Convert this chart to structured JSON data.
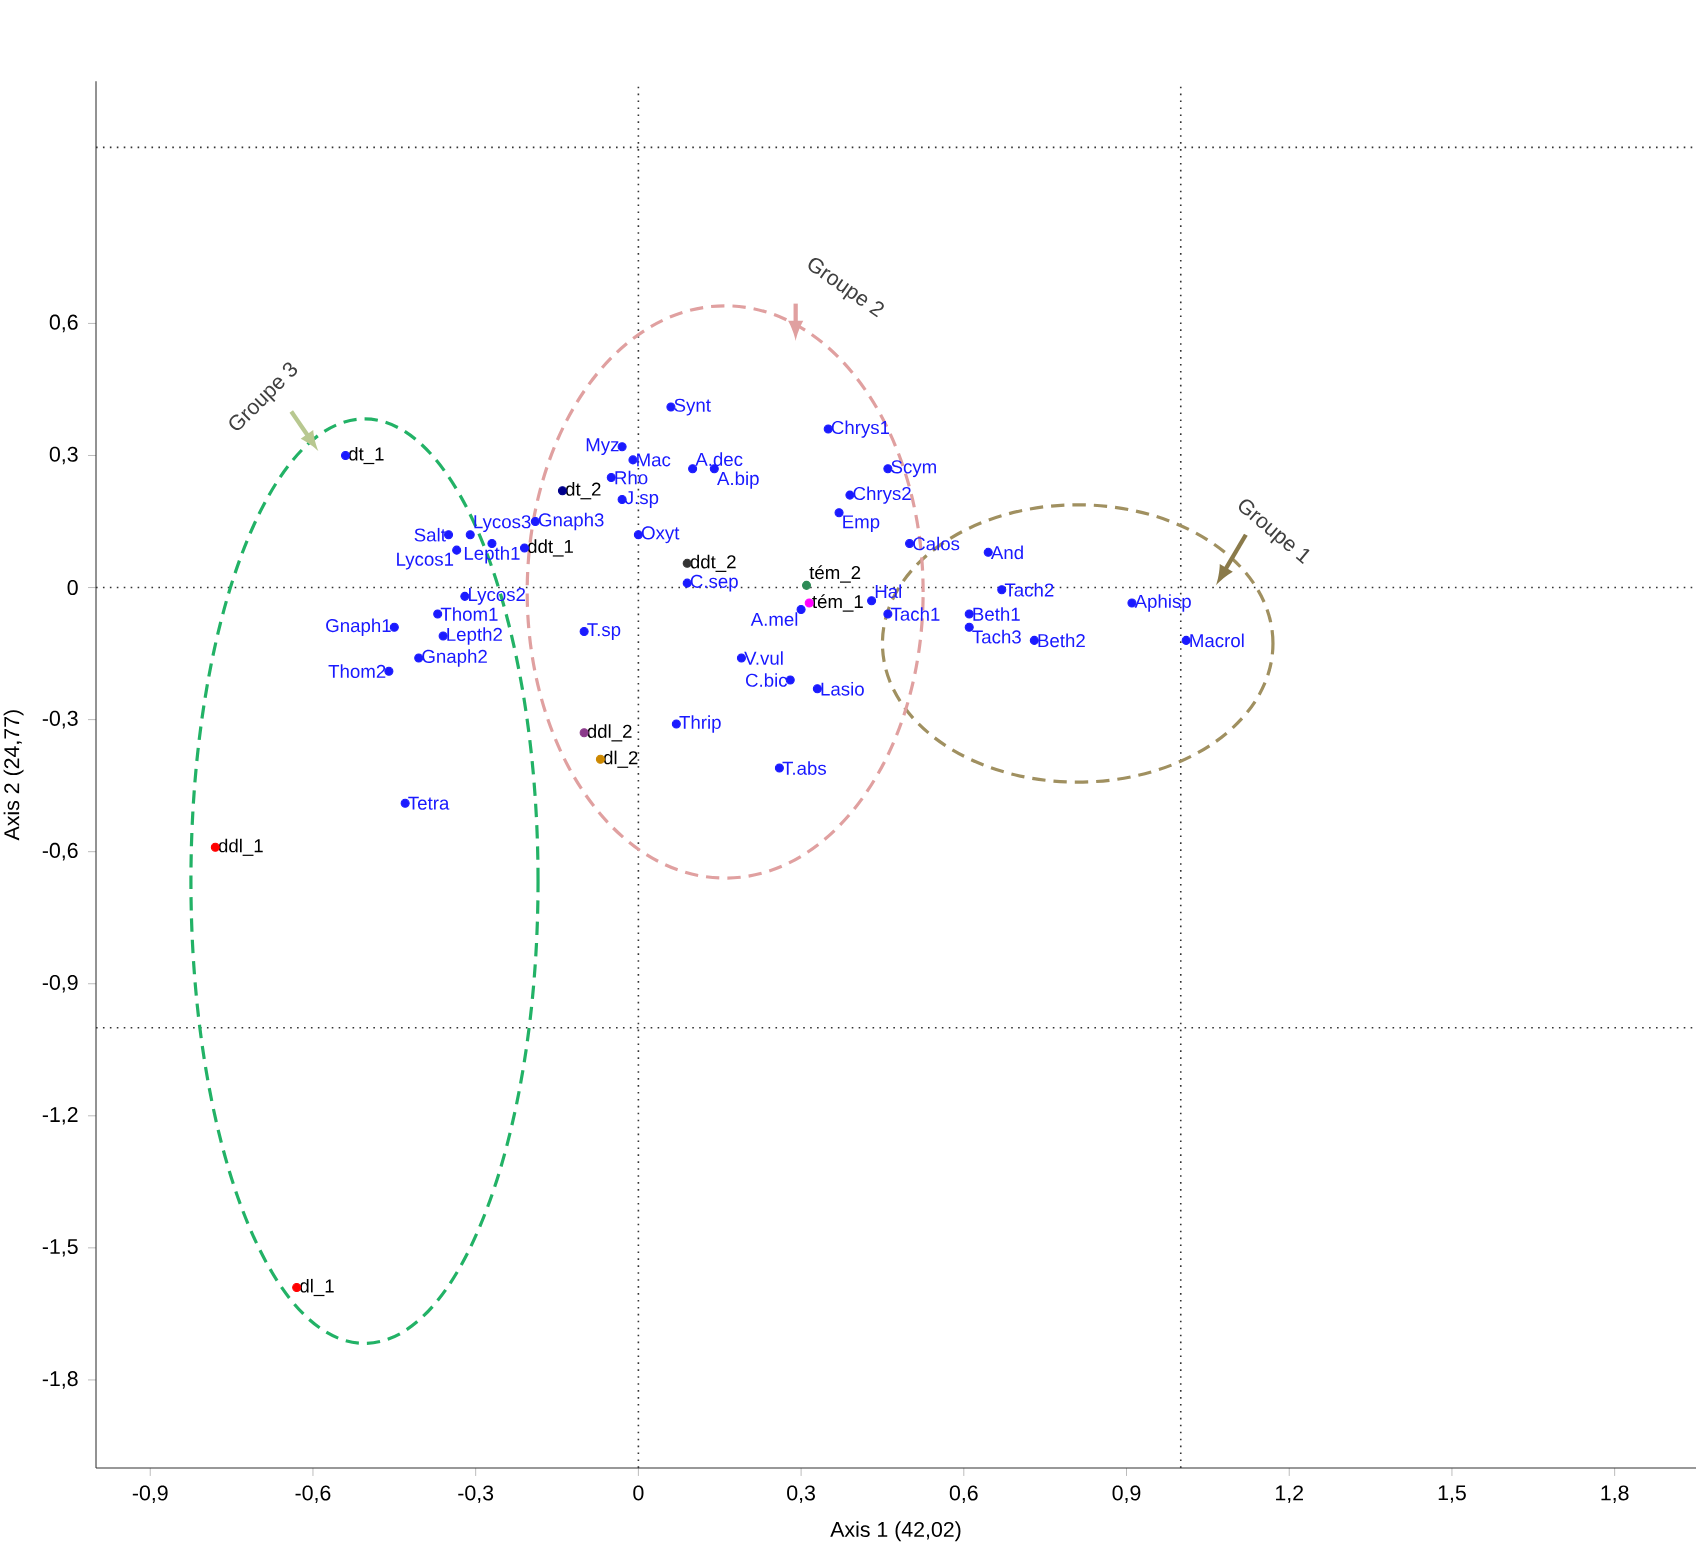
{
  "chart_data": {
    "type": "scatter",
    "xlabel": "Axis 1 (42,02)",
    "ylabel": "Axis 2 (24,77)",
    "marker": "circle",
    "xlim": [
      -1.0,
      1.95
    ],
    "ylim": [
      -2.0,
      1.15
    ],
    "xticks": [
      {
        "value": -0.9,
        "label": "-0,9"
      },
      {
        "value": -0.6,
        "label": "-0,6"
      },
      {
        "value": -0.3,
        "label": "-0,3"
      },
      0,
      {
        "value": 0.3,
        "label": "0,3"
      },
      {
        "value": 0.6,
        "label": "0,6"
      },
      {
        "value": 0.9,
        "label": "0,9"
      },
      {
        "value": 1.2,
        "label": "1,2"
      },
      {
        "value": 1.5,
        "label": "1,5"
      },
      {
        "value": 1.8,
        "label": "1,8"
      }
    ],
    "yticks": [
      {
        "value": -1.8,
        "label": "-1,8"
      },
      {
        "value": -1.5,
        "label": "-1,5"
      },
      {
        "value": -1.2,
        "label": "-1,2"
      },
      {
        "value": -0.9,
        "label": "-0,9"
      },
      {
        "value": -0.6,
        "label": "-0,6"
      },
      {
        "value": -0.3,
        "label": "-0,3"
      },
      0,
      {
        "value": 0.3,
        "label": "0,3"
      },
      {
        "value": 0.6,
        "label": "0,6"
      }
    ],
    "ref_lines": [
      {
        "axis": "x",
        "value": 0,
        "color": "#333333",
        "line_style": "dotted"
      },
      {
        "axis": "x",
        "value": 1.0,
        "color": "#333333",
        "line_style": "dotted"
      },
      {
        "axis": "y",
        "value": 0,
        "color": "#333333",
        "line_style": "dotted"
      },
      {
        "axis": "y",
        "value": 1.0,
        "color": "#333333",
        "line_style": "dotted"
      },
      {
        "axis": "y",
        "value": -1.0,
        "color": "#333333",
        "line_style": "dotted"
      }
    ],
    "series": [
      {
        "color": "#1a1aff",
        "x": [
          -0.31,
          -0.35,
          -0.335,
          -0.27,
          -0.32,
          -0.37,
          -0.36,
          -0.45,
          -0.405,
          -0.46,
          -0.43,
          -0.19,
          -0.05,
          -0.03,
          -0.01,
          -0.03,
          0.06,
          0.0,
          0.1,
          0.14,
          0.09,
          -0.1,
          0.07,
          0.19,
          0.28,
          0.33,
          0.26,
          0.35,
          0.46,
          0.39,
          0.37,
          0.43,
          0.3,
          0.46,
          0.5,
          0.645,
          0.67,
          0.61,
          0.61,
          0.73,
          0.91,
          1.01
        ],
        "values": [
          0.12,
          0.12,
          0.085,
          0.1,
          -0.02,
          -0.06,
          -0.11,
          -0.09,
          -0.16,
          -0.19,
          -0.49,
          0.15,
          0.25,
          0.32,
          0.29,
          0.2,
          0.41,
          0.12,
          0.27,
          0.27,
          0.01,
          -0.1,
          -0.31,
          -0.16,
          -0.21,
          -0.23,
          -0.41,
          0.36,
          0.27,
          0.21,
          0.17,
          -0.03,
          -0.05,
          -0.06,
          0.1,
          0.08,
          -0.005,
          -0.06,
          -0.09,
          -0.12,
          -0.035,
          -0.12
        ]
      },
      {
        "colors": [
          "#1a1aff",
          "#00008b",
          "#1a1aff",
          "#333333",
          "#2e8b57",
          "#ff00ff",
          "#8b3a8b",
          "#cc8800",
          "#ff0000",
          "#ff0000"
        ],
        "x": [
          -0.54,
          -0.14,
          -0.21,
          0.09,
          0.31,
          0.315,
          -0.1,
          -0.07,
          -0.78,
          -0.63
        ],
        "values": [
          0.3,
          0.22,
          0.09,
          0.055,
          0.005,
          -0.035,
          -0.33,
          -0.39,
          -0.59,
          -1.59
        ]
      }
    ],
    "annotations": [
      {
        "text": "Lycos3",
        "x": -0.31,
        "y": 0.12
      },
      {
        "text": "Salt",
        "x": -0.35,
        "y": 0.12
      },
      {
        "text": "Lycos1",
        "x": -0.335,
        "y": 0.085
      },
      {
        "text": "Lepth1",
        "x": -0.27,
        "y": 0.1
      },
      {
        "text": "Lycos2",
        "x": -0.32,
        "y": -0.02
      },
      {
        "text": "Thom1",
        "x": -0.37,
        "y": -0.06
      },
      {
        "text": "Lepth2",
        "x": -0.36,
        "y": -0.11
      },
      {
        "text": "Gnaph1",
        "x": -0.45,
        "y": -0.09
      },
      {
        "text": "Gnaph2",
        "x": -0.405,
        "y": -0.16
      },
      {
        "text": "Thom2",
        "x": -0.46,
        "y": -0.19
      },
      {
        "text": "Tetra",
        "x": -0.43,
        "y": -0.49
      },
      {
        "text": "Gnaph3",
        "x": -0.19,
        "y": 0.15
      },
      {
        "text": "Rho",
        "x": -0.05,
        "y": 0.25
      },
      {
        "text": "Myz",
        "x": -0.03,
        "y": 0.32
      },
      {
        "text": "Mac",
        "x": -0.01,
        "y": 0.29
      },
      {
        "text": "J.sp",
        "x": -0.03,
        "y": 0.2
      },
      {
        "text": "Synt",
        "x": 0.06,
        "y": 0.41
      },
      {
        "text": "Oxyt",
        "x": 0.0,
        "y": 0.12
      },
      {
        "text": "A.dec",
        "x": 0.1,
        "y": 0.27
      },
      {
        "text": "A.bip",
        "x": 0.14,
        "y": 0.27
      },
      {
        "text": "C.sep",
        "x": 0.09,
        "y": 0.01
      },
      {
        "text": "T.sp",
        "x": -0.1,
        "y": -0.1
      },
      {
        "text": "Thrip",
        "x": 0.07,
        "y": -0.31
      },
      {
        "text": "V.vul",
        "x": 0.19,
        "y": -0.16
      },
      {
        "text": "C.bic",
        "x": 0.28,
        "y": -0.21
      },
      {
        "text": "Lasio",
        "x": 0.33,
        "y": -0.23
      },
      {
        "text": "T.abs",
        "x": 0.26,
        "y": -0.41
      },
      {
        "text": "Chrys1",
        "x": 0.35,
        "y": 0.36
      },
      {
        "text": "Scym",
        "x": 0.46,
        "y": 0.27
      },
      {
        "text": "Chrys2",
        "x": 0.39,
        "y": 0.21
      },
      {
        "text": "Emp",
        "x": 0.37,
        "y": 0.17
      },
      {
        "text": "Hal",
        "x": 0.43,
        "y": -0.03
      },
      {
        "text": "A.mel",
        "x": 0.3,
        "y": -0.05
      },
      {
        "text": "Tach1",
        "x": 0.46,
        "y": -0.06
      },
      {
        "text": "Calos",
        "x": 0.5,
        "y": 0.1
      },
      {
        "text": "And",
        "x": 0.645,
        "y": 0.08
      },
      {
        "text": "Tach2",
        "x": 0.67,
        "y": -0.005
      },
      {
        "text": "Beth1",
        "x": 0.61,
        "y": -0.06
      },
      {
        "text": "Tach3",
        "x": 0.61,
        "y": -0.09
      },
      {
        "text": "Beth2",
        "x": 0.73,
        "y": -0.12
      },
      {
        "text": "Aphisp",
        "x": 0.91,
        "y": -0.035
      },
      {
        "text": "Macrol",
        "x": 1.01,
        "y": -0.12
      },
      {
        "text": "dt_1",
        "x": -0.54,
        "y": 0.3
      },
      {
        "text": "dt_2",
        "x": -0.14,
        "y": 0.22
      },
      {
        "text": "ddt_1",
        "x": -0.21,
        "y": 0.09
      },
      {
        "text": "ddt_2",
        "x": 0.09,
        "y": 0.055
      },
      {
        "text": "tém_2",
        "x": 0.31,
        "y": 0.005
      },
      {
        "text": "tém_1",
        "x": 0.315,
        "y": -0.035
      },
      {
        "text": "ddl_2",
        "x": -0.1,
        "y": -0.33
      },
      {
        "text": "dl_2",
        "x": -0.07,
        "y": -0.39
      },
      {
        "text": "ddl_1",
        "x": -0.78,
        "y": -0.59
      },
      {
        "text": "dl_1",
        "x": -0.63,
        "y": -1.59
      },
      "Groupe 1",
      "Groupe 2",
      "Groupe 3"
    ]
  }
}
